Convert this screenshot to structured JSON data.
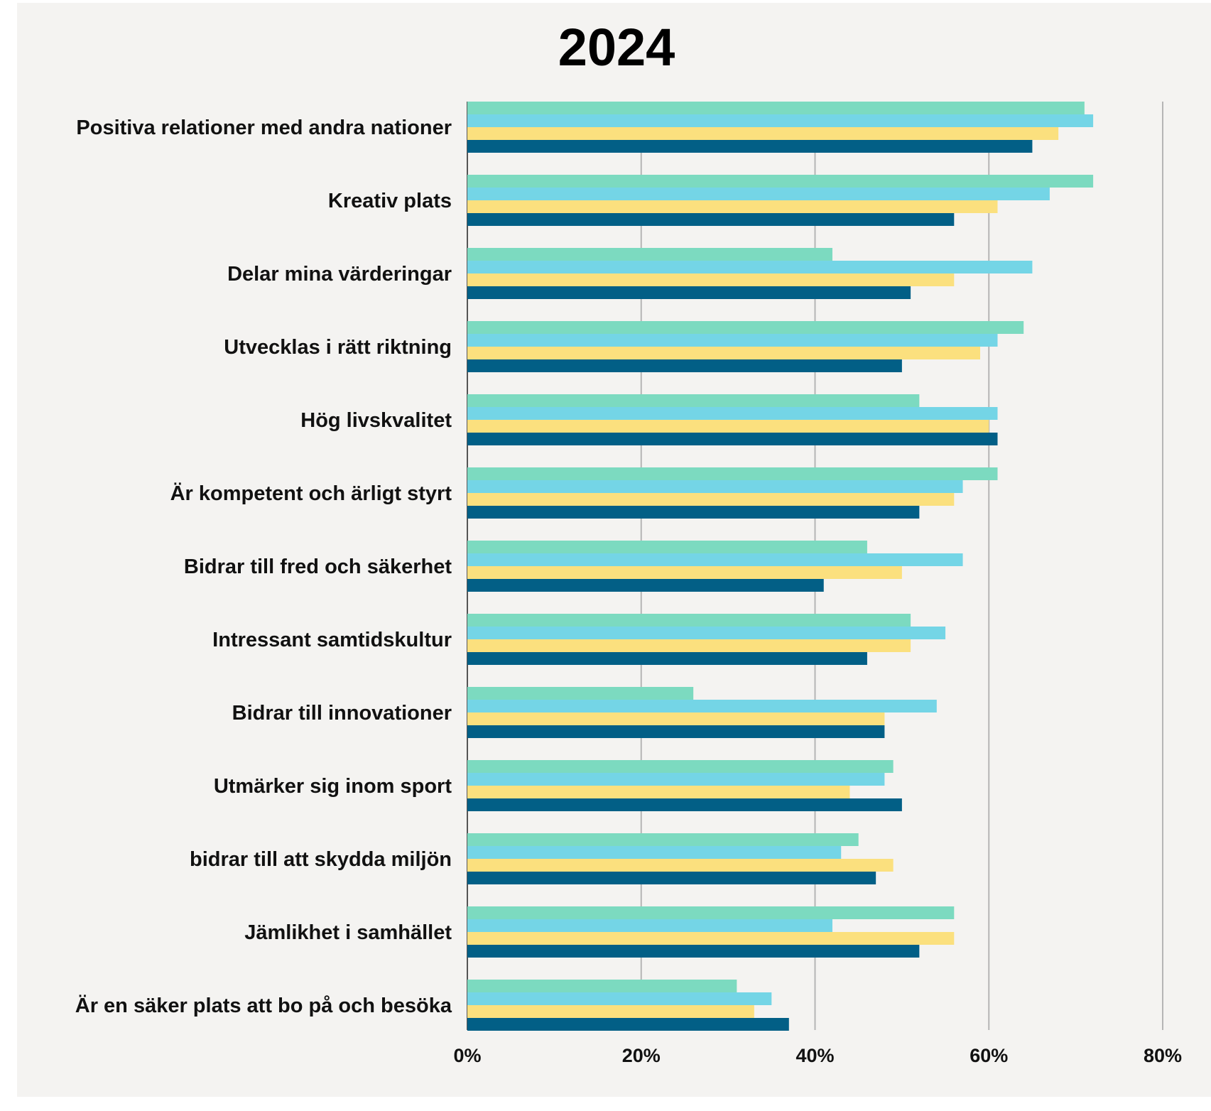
{
  "chart_data": {
    "type": "bar",
    "orientation": "horizontal",
    "title": "2024",
    "xlabel": "",
    "ylabel": "",
    "xlim": [
      0,
      80
    ],
    "x_ticks": [
      "0%",
      "20%",
      "40%",
      "60%",
      "80%"
    ],
    "grid": true,
    "legend": "none",
    "categories": [
      "Positiva relationer med andra nationer",
      "Kreativ plats",
      "Delar mina värderingar",
      "Utvecklas i rätt riktning",
      "Hög livskvalitet",
      "Är kompetent och ärligt styrt",
      "Bidrar till fred och säkerhet",
      "Intressant samtidskultur",
      "Bidrar till innovationer",
      "Utmärker sig inom sport",
      "bidrar till att skydda miljön",
      "Jämlikhet i samhället",
      "Är en säker plats att bo på och besöka"
    ],
    "series": [
      {
        "color": "#7cdac0",
        "values": [
          71,
          72,
          42,
          64,
          52,
          61,
          46,
          51,
          26,
          49,
          45,
          56,
          31
        ]
      },
      {
        "color": "#74d5e6",
        "values": [
          72,
          67,
          65,
          61,
          61,
          57,
          57,
          55,
          54,
          48,
          43,
          42,
          35
        ]
      },
      {
        "color": "#fbe07e",
        "values": [
          68,
          61,
          56,
          59,
          60,
          56,
          50,
          51,
          48,
          44,
          49,
          56,
          33
        ]
      },
      {
        "color": "#025f86",
        "values": [
          65,
          56,
          51,
          50,
          61,
          52,
          41,
          46,
          48,
          50,
          47,
          52,
          37
        ]
      }
    ]
  }
}
